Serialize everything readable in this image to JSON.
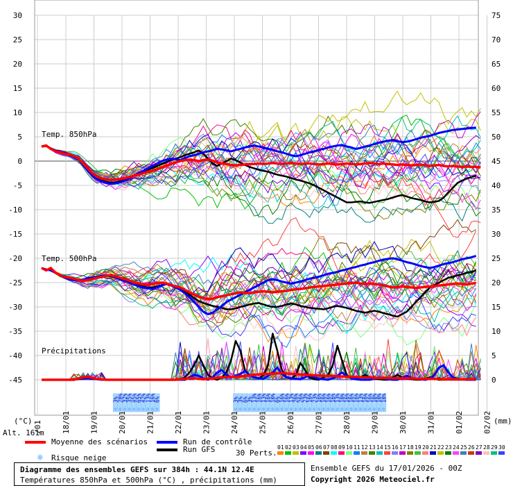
{
  "chart_data": {
    "type": "line",
    "left_axis_ticks": [
      "30",
      "25",
      "20",
      "15",
      "10",
      "5",
      "0",
      "-5",
      "-10",
      "-15",
      "-20",
      "-25",
      "-30",
      "-35",
      "-40",
      "-45"
    ],
    "right_axis_ticks": [
      "75",
      "70",
      "65",
      "60",
      "55",
      "50",
      "45",
      "40",
      "35",
      "30",
      "25",
      "20",
      "15",
      "10",
      "5",
      "0"
    ],
    "left_unit": "(°C)",
    "right_unit": "(mm)",
    "x_dates": [
      "18/01",
      "19/01",
      "20/01",
      "21/01",
      "22/01",
      "23/01",
      "24/01",
      "25/01",
      "26/01",
      "27/01",
      "28/01",
      "29/01",
      "30/01",
      "31/01",
      "01/02",
      "02/02"
    ],
    "x_first_partial": "/01",
    "section_labels": {
      "t850": "Temp. 850hPa",
      "t500": "Temp. 500hPa",
      "precip": "Précipitations"
    },
    "alt_label": "Alt. 161m",
    "snow_risk_groups": [
      {
        "start_step": 16,
        "values": [
          "3%",
          "28%",
          "32%",
          "35%",
          "45%",
          "65%",
          "42%",
          "13%",
          "16%",
          "6%"
        ]
      },
      {
        "start_step": 42,
        "values": [
          "3%",
          "3%",
          "6%",
          "3%",
          "13%",
          "16%",
          "13%",
          "16%",
          "10%",
          "6%",
          "16%",
          "16%",
          "13%",
          "26%",
          "26%",
          "23%",
          "16%",
          "23%",
          "16%",
          "16%",
          "16%",
          "16%",
          "13%",
          "10%",
          "16%",
          "16%",
          "16%",
          "13%",
          "16%",
          "16%",
          "10%",
          "10%",
          "10%"
        ]
      }
    ],
    "series": [
      {
        "name": "Moyenne des scénarios",
        "color": "#ff0000",
        "t850": [
          3,
          3.2,
          2.5,
          2,
          1.8,
          1.5,
          1.3,
          1,
          0.5,
          -0.5,
          -1.5,
          -2.5,
          -3.2,
          -3.6,
          -3.8,
          -3.9,
          -3.8,
          -3.7,
          -3.5,
          -3.3,
          -3,
          -2.8,
          -2.5,
          -2.2,
          -2,
          -1.7,
          -1.3,
          -1,
          -0.6,
          -0.3,
          0,
          0.2,
          0.3,
          0.2,
          0,
          0.2,
          0.3,
          0.1,
          -0.3,
          -0.5,
          -0.6,
          -0.8,
          -0.9,
          -0.8,
          -0.7,
          -0.6,
          -0.6,
          -0.5,
          -0.6,
          -0.5,
          -0.4,
          -0.5,
          -0.6,
          -0.5,
          -0.4,
          -0.5,
          -0.6,
          -0.5,
          -0.5,
          -0.6,
          -0.7,
          -0.6,
          -0.5,
          -0.6,
          -0.7,
          -0.6,
          -0.5,
          -0.6,
          -0.7,
          -0.6,
          -0.5,
          -0.4,
          -0.5,
          -0.6,
          -0.5,
          -0.6,
          -0.7,
          -0.8,
          -0.7,
          -0.8,
          -0.9,
          -0.8,
          -0.7,
          -0.9,
          -1,
          -0.9,
          -0.8,
          -1,
          -1.1,
          -1,
          -1.1,
          -1.2,
          -1.1,
          -1.2,
          -1.2,
          -1.3
        ],
        "t500": [
          -22,
          -22.5,
          -22,
          -23,
          -23.5,
          -23.8,
          -24,
          -24.2,
          -24.5,
          -24.6,
          -24.5,
          -24.3,
          -24,
          -23.8,
          -23.6,
          -23.5,
          -23.7,
          -24,
          -24.3,
          -24.6,
          -25,
          -25.2,
          -25.4,
          -25.5,
          -25.3,
          -25.1,
          -25,
          -25.2,
          -25.5,
          -25.8,
          -26,
          -26.5,
          -27,
          -27.5,
          -27.9,
          -28.2,
          -28.4,
          -28.3,
          -28,
          -27.8,
          -27.6,
          -27.4,
          -27.2,
          -27,
          -27.1,
          -27.2,
          -27,
          -26.9,
          -26.8,
          -26.9,
          -27,
          -26.9,
          -26.8,
          -26.7,
          -26.5,
          -26.4,
          -26.3,
          -26.2,
          -26,
          -25.9,
          -25.8,
          -25.7,
          -25.6,
          -25.5,
          -25.4,
          -25.3,
          -25.2,
          -25.1,
          -25,
          -25.2,
          -25.3,
          -25.2,
          -25.3,
          -25.4,
          -25.6,
          -25.8,
          -26,
          -25.9,
          -25.8,
          -25.9,
          -26,
          -26.1,
          -26,
          -25.9,
          -25.8,
          -25.7,
          -25.6,
          -25.5,
          -25.4,
          -25.3,
          -25.2,
          -25.3,
          -25.4,
          -25.2,
          -25.1
        ],
        "precip": [
          0,
          0,
          0,
          0,
          0,
          0,
          0,
          0,
          0.3,
          0.5,
          0.6,
          0.4,
          0.2,
          0.1,
          0,
          0,
          0,
          0,
          0,
          0,
          0,
          0,
          0,
          0,
          0,
          0,
          0,
          0,
          0,
          0,
          0.1,
          0.2,
          0.3,
          0.3,
          0.2,
          0.1,
          0.2,
          0.3,
          0.4,
          0.5,
          0.5,
          0.6,
          0.6,
          0.7,
          0.8,
          0.9,
          1,
          1.1,
          1.2,
          1.2,
          1.3,
          1.3,
          1.4,
          1.3,
          1.2,
          1.2,
          1.1,
          1,
          1,
          0.9,
          0.9,
          0.8,
          0.8,
          0.8,
          0.7,
          0.7,
          0.6,
          0.6,
          0.6,
          0.5,
          0.5,
          0.5,
          0.4,
          0.4,
          0.4,
          0.4,
          0.3,
          0.3,
          0.3,
          0.3,
          0.3,
          0.2,
          0.2,
          0.2,
          0.2,
          0.2,
          0.2,
          0.1,
          0.1,
          0.1,
          0.1,
          0.1,
          0.1,
          0.1,
          0.1
        ]
      },
      {
        "name": "Run de contrôle",
        "color": "#0000ff",
        "t850": [
          3,
          3.1,
          2.6,
          2.2,
          2,
          1.7,
          1.2,
          0.8,
          0.3,
          -0.8,
          -2,
          -3,
          -3.8,
          -4.2,
          -4.5,
          -4.7,
          -4.6,
          -4.4,
          -4,
          -3.5,
          -3,
          -2.5,
          -2,
          -1.5,
          -1,
          -0.5,
          0,
          0.3,
          0.5,
          0.4,
          0.2,
          0.6,
          1,
          1.2,
          1.5,
          1.8,
          2,
          2.2,
          2.5,
          2.4,
          2.2,
          2,
          2.3,
          2.5,
          2.8,
          3,
          3.2,
          3,
          2.8,
          2.5,
          2.3,
          2,
          1.8,
          1.5,
          1.2,
          1,
          1.2,
          1.5,
          1.8,
          2,
          2.3,
          2.5,
          2.8,
          3,
          3.2,
          3.3,
          3,
          2.8,
          2.5,
          2.7,
          3,
          3.2,
          3.5,
          3.8,
          4,
          4.2,
          4.3,
          4.1,
          3.9,
          4,
          4.2,
          4.5,
          4.8,
          5,
          5.2,
          5.5,
          5.8,
          6,
          6.2,
          6.4,
          6.5,
          6.6,
          6.7,
          6.8,
          6.9
        ],
        "t500": [
          -22,
          -22.3,
          -22.5,
          -23,
          -23.5,
          -24,
          -24.3,
          -24.5,
          -24.6,
          -24.4,
          -24.2,
          -24,
          -23.8,
          -23.6,
          -23.5,
          -23.6,
          -23.9,
          -24.2,
          -24.6,
          -25,
          -25.4,
          -25.8,
          -26,
          -26.2,
          -26.3,
          -26,
          -25.6,
          -25.3,
          -25.6,
          -26,
          -26.5,
          -27.2,
          -28,
          -29,
          -30,
          -31,
          -31.5,
          -31.2,
          -30.5,
          -29.8,
          -29,
          -28.5,
          -28,
          -27.5,
          -27,
          -26.5,
          -26,
          -25.5,
          -25,
          -24.5,
          -24.3,
          -24.5,
          -24.8,
          -25,
          -25.2,
          -25,
          -24.8,
          -24.5,
          -24.2,
          -24,
          -23.8,
          -23.5,
          -23.2,
          -23,
          -22.8,
          -22.5,
          -22.3,
          -22,
          -21.8,
          -21.5,
          -21.3,
          -21,
          -20.8,
          -20.5,
          -20.3,
          -20.1,
          -20,
          -20.2,
          -20.5,
          -20.8,
          -21,
          -21.3,
          -21.6,
          -21.8,
          -22,
          -21.8,
          -21.5,
          -21.2,
          -21,
          -20.8,
          -20.5,
          -20.2,
          -20,
          -19.8,
          -19.5
        ],
        "precip": [
          0,
          0,
          0,
          0,
          0,
          0,
          0,
          0,
          0.2,
          0.3,
          0.4,
          0.2,
          0.1,
          0,
          0,
          0,
          0,
          0,
          0,
          0,
          0,
          0,
          0,
          0,
          0,
          0,
          0,
          0,
          0,
          0,
          0,
          0,
          0.5,
          1,
          0.8,
          0.3,
          0,
          0.5,
          1.5,
          2,
          1,
          0.5,
          0.8,
          1.2,
          1.8,
          1,
          0.5,
          0.3,
          0.2,
          0.8,
          1.5,
          2.5,
          1.2,
          0.5,
          0.3,
          0.2,
          0.1,
          0.5,
          1,
          0.5,
          0.2,
          0.1,
          0,
          0.3,
          0.8,
          1.5,
          0.8,
          0.3,
          0.1,
          0,
          0,
          0,
          0.2,
          0.5,
          0.3,
          0.1,
          0,
          0,
          0.4,
          0.8,
          0.4,
          0.2,
          0.1,
          0,
          0.2,
          1,
          2.5,
          3,
          1.5,
          0.5,
          0.2,
          0.1,
          0,
          0,
          0
        ]
      },
      {
        "name": "Run GFS",
        "color": "#000000",
        "t850": [
          3,
          3.1,
          2.6,
          2.1,
          1.9,
          1.6,
          1.3,
          0.9,
          0.4,
          -0.6,
          -1.8,
          -2.8,
          -3.5,
          -4,
          -4.3,
          -4.5,
          -4.4,
          -4.2,
          -3.9,
          -3.5,
          -3,
          -2.6,
          -2.2,
          -1.8,
          -1.4,
          -1,
          -0.6,
          -0.2,
          0.2,
          0.5,
          0.8,
          1.2,
          1.5,
          1.8,
          2.2,
          1.5,
          0.5,
          -0.5,
          -1,
          -0.5,
          0,
          0.5,
          0.2,
          -0.3,
          -0.8,
          -1.2,
          -1.5,
          -1.8,
          -2,
          -2.2,
          -2.5,
          -2.8,
          -3,
          -3.2,
          -3.5,
          -3.8,
          -4,
          -4.3,
          -4.6,
          -5,
          -5.5,
          -6,
          -6.5,
          -7,
          -7.5,
          -8,
          -8.5,
          -8.5,
          -8.4,
          -8.3,
          -8.5,
          -8.6,
          -8.4,
          -8.2,
          -8,
          -7.8,
          -7.5,
          -7.2,
          -7,
          -7.3,
          -7.6,
          -7.8,
          -8,
          -8.3,
          -8.5,
          -8.4,
          -8.2,
          -7.5,
          -6.5,
          -5.5,
          -4.5,
          -4,
          -3.6,
          -3.3,
          -3
        ],
        "t500": [
          -22,
          -22.4,
          -22.2,
          -23,
          -23.6,
          -24,
          -24.2,
          -24.4,
          -24.6,
          -24.5,
          -24.3,
          -24.1,
          -23.9,
          -23.7,
          -23.6,
          -23.7,
          -24,
          -24.3,
          -24.7,
          -25,
          -25.3,
          -25.6,
          -25.8,
          -26,
          -26,
          -25.8,
          -25.5,
          -25.2,
          -25.5,
          -25.8,
          -26.2,
          -26.8,
          -27.5,
          -28.2,
          -28.8,
          -29.2,
          -29.5,
          -29.8,
          -30,
          -30.2,
          -30.5,
          -30.5,
          -30.3,
          -30,
          -29.8,
          -29.5,
          -29.3,
          -29.2,
          -29.5,
          -29.8,
          -30,
          -30,
          -29.8,
          -29.5,
          -29.3,
          -29.5,
          -29.8,
          -30,
          -30.2,
          -30.3,
          -30.4,
          -30.5,
          -30.3,
          -30,
          -29.8,
          -30,
          -30.2,
          -30.5,
          -30.8,
          -31,
          -31.2,
          -31,
          -30.8,
          -31,
          -31.3,
          -31.5,
          -31.8,
          -32,
          -31.5,
          -31,
          -30,
          -29,
          -28,
          -27,
          -26,
          -25.5,
          -25,
          -24.5,
          -24,
          -23.8,
          -23.5,
          -23.3,
          -23,
          -22.8,
          -22.5
        ],
        "precip": [
          0,
          0,
          0,
          0,
          0,
          0,
          0,
          0,
          0.1,
          0.2,
          0.3,
          0.2,
          0.1,
          0,
          0,
          0,
          0,
          0,
          0,
          0,
          0,
          0,
          0,
          0,
          0,
          0,
          0,
          0,
          0,
          0,
          0,
          0.5,
          1.5,
          3,
          5,
          3,
          1,
          0.3,
          0,
          0.5,
          1.5,
          4,
          8,
          6,
          2,
          1,
          0.5,
          0.2,
          1,
          3,
          9.5,
          6,
          2,
          0.5,
          0.2,
          1,
          3.5,
          2,
          0.5,
          0.1,
          0,
          0.5,
          1,
          3,
          7,
          4,
          1,
          0.3,
          0.2,
          0.5,
          1,
          0.5,
          0.2,
          0.1,
          0,
          0,
          0.5,
          1,
          0.5,
          0.2,
          0.1,
          0,
          0,
          0.2,
          0.5,
          0.2,
          0,
          0,
          0,
          0,
          0,
          0,
          0,
          0,
          0
        ]
      }
    ],
    "member_colors": [
      "#ff8000",
      "#00c000",
      "#c0c000",
      "#8000ff",
      "#ff00ff",
      "#008080",
      "#804000",
      "#00ffff",
      "#ff0080",
      "#80ff80",
      "#0080ff",
      "#c08040",
      "#408000",
      "#00c0c0",
      "#ff4040",
      "#8080ff",
      "#c000c0",
      "#808000",
      "#40c040",
      "#ff8080",
      "#0000c0",
      "#c0c000",
      "#008000",
      "#ff40ff",
      "#4080c0",
      "#c04000",
      "#8000c0",
      "#ffc0c0",
      "#00c080",
      "#4040ff"
    ],
    "member_numbers": [
      "01",
      "02",
      "03",
      "04",
      "05",
      "06",
      "07",
      "08",
      "09",
      "10",
      "11",
      "12",
      "13",
      "14",
      "15",
      "16",
      "17",
      "18",
      "19",
      "20",
      "21",
      "22",
      "23",
      "24",
      "25",
      "26",
      "27",
      "28",
      "29",
      "30"
    ],
    "legend": {
      "mean": "Moyenne des scénarios",
      "control": "Run de contrôle",
      "gfs": "Run GFS",
      "snow": "Risque neige",
      "perts": "30 Perts.",
      "colors": {
        "mean": "#ff0000",
        "control": "#0000ff",
        "gfs": "#000000",
        "snow": "#66aaff"
      }
    },
    "footer": {
      "title": "Diagramme des ensembles GEFS sur 384h : 44.1N 12.4E",
      "subtitle": "Températures 850hPa et 500hPa (°C) , précipitations (mm)",
      "ensemble": "Ensemble GEFS du 17/01/2026 - 00Z",
      "copyright": "Copyright 2026 Meteociel.fr"
    }
  }
}
